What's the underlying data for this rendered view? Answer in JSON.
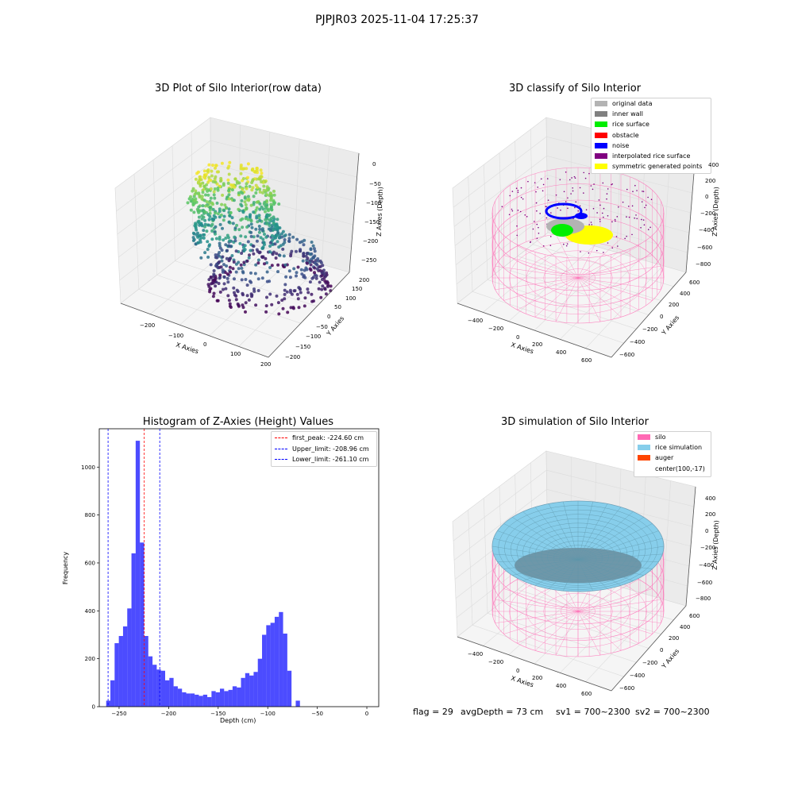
{
  "suptitle": "PJPJR03 2025-11-04 17:25:37",
  "panels": {
    "raw": {
      "title": "3D Plot of Silo Interior(row data)",
      "xlabel": "X Axies",
      "ylabel": "Y Axies",
      "zlabel": "Z Axies (Depth)",
      "xticks": [
        "−200",
        "−100",
        "0",
        "100",
        "200"
      ],
      "yticks": [
        "−200",
        "−150",
        "−100",
        "−50",
        "0",
        "50",
        "100",
        "150",
        "200"
      ],
      "zticks": [
        "0",
        "−50",
        "−100",
        "−150",
        "−200",
        "−250"
      ]
    },
    "classify": {
      "title": "3D classify of Silo Interior",
      "xlabel": "X Axies",
      "ylabel": "Y Axies",
      "zlabel": "Z Axies (Depth)",
      "xticks": [
        "−400",
        "−200",
        "0",
        "200",
        "400",
        "600"
      ],
      "yticks": [
        "−600",
        "−400",
        "−200",
        "0",
        "200",
        "400",
        "600"
      ],
      "zticks": [
        "400",
        "200",
        "0",
        "−200",
        "−400",
        "−600",
        "−800"
      ],
      "legend": [
        {
          "label": "original data",
          "color": "#b3b3b3"
        },
        {
          "label": "inner wall",
          "color": "#808080"
        },
        {
          "label": "rice surface",
          "color": "#00ee00"
        },
        {
          "label": "obstacle",
          "color": "#ff0000"
        },
        {
          "label": "noise",
          "color": "#0000ff"
        },
        {
          "label": "interpolated rice surface",
          "color": "#800080"
        },
        {
          "label": "symmetric generated points",
          "color": "#ffff00"
        }
      ]
    },
    "simulation": {
      "title": "3D simulation of Silo Interior",
      "xlabel": "X Axies",
      "ylabel": "Y Axies",
      "zlabel": "Z Axies (Depth)",
      "xticks": [
        "−400",
        "−200",
        "0",
        "200",
        "400",
        "600"
      ],
      "yticks": [
        "−600",
        "−400",
        "−200",
        "0",
        "200",
        "400",
        "600"
      ],
      "zticks": [
        "400",
        "200",
        "0",
        "−200",
        "−400",
        "−600",
        "−800"
      ],
      "legend": [
        {
          "label": "silo",
          "color": "#ff69b4"
        },
        {
          "label": "rice simulation",
          "color": "#87ceeb"
        },
        {
          "label": "auger",
          "color": "#ff4500"
        },
        {
          "label": "center(100,-17)",
          "color": ""
        }
      ]
    }
  },
  "chart_data": {
    "type": "bar",
    "title": "Histogram of Z-Axies (Height) Values",
    "xlabel": "Depth (cm)",
    "ylabel": "Frequency",
    "xlim": [
      -270,
      12
    ],
    "ylim": [
      0,
      1160
    ],
    "xticks": [
      -250,
      -200,
      -150,
      -100,
      -50,
      0
    ],
    "yticks": [
      0,
      200,
      400,
      600,
      800,
      1000
    ],
    "bin_start": -263,
    "bin_width": 4.25,
    "values": [
      25,
      110,
      265,
      295,
      335,
      410,
      640,
      1110,
      685,
      295,
      210,
      175,
      155,
      150,
      110,
      120,
      85,
      75,
      60,
      55,
      55,
      50,
      45,
      50,
      40,
      65,
      60,
      75,
      65,
      70,
      85,
      80,
      120,
      140,
      130,
      145,
      200,
      300,
      340,
      350,
      375,
      395,
      305,
      150,
      0,
      25
    ],
    "bar_color": "#0000ff",
    "vlines": [
      {
        "x": -224.6,
        "color": "#ff0000",
        "label": "first_peak: -224.60 cm"
      },
      {
        "x": -208.96,
        "color": "#0000ff",
        "label": "Upper_limit: -208.96 cm"
      },
      {
        "x": -261.1,
        "color": "#0000ff",
        "label": "Lower_limit: -261.10 cm"
      }
    ],
    "legend_position": "upper right"
  },
  "footer": {
    "flag": "flag = 29",
    "avg": "avgDepth = 73 cm",
    "sv1": "sv1 = 700~2300",
    "sv2": "sv2 = 700~2300"
  }
}
